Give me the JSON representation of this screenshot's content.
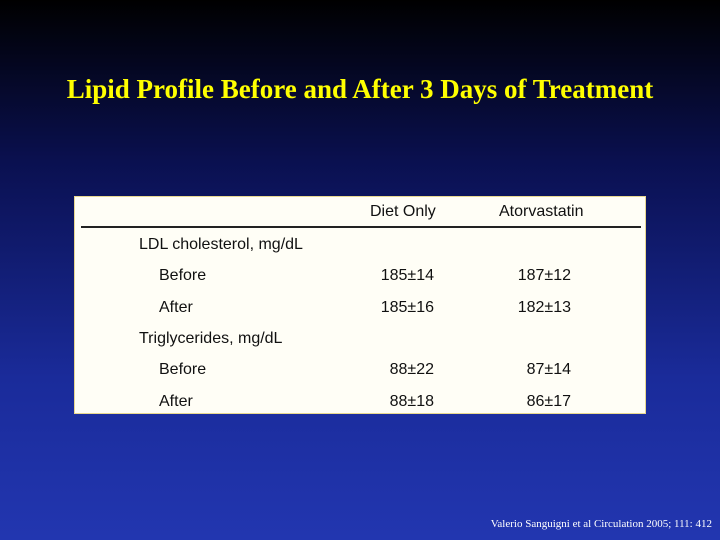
{
  "slide": {
    "title": "Lipid Profile Before and After 3 Days of Treatment",
    "table": {
      "columns": [
        "Diet Only",
        "Atorvastatin"
      ],
      "sections": [
        {
          "label": "LDL cholesterol, mg/dL",
          "rows": [
            {
              "label": "Before",
              "cells": [
                "185±14",
                "187±12"
              ]
            },
            {
              "label": "After",
              "cells": [
                "185±16",
                "182±13"
              ]
            }
          ]
        },
        {
          "label": "Triglycerides, mg/dL",
          "rows": [
            {
              "label": "Before",
              "cells": [
                "88±22",
                "87±14"
              ]
            },
            {
              "label": "After",
              "cells": [
                "88±18",
                "86±17"
              ]
            }
          ]
        }
      ]
    },
    "citation": "Valerio Sanguigni et al Circulation 2005; 111: 412"
  }
}
